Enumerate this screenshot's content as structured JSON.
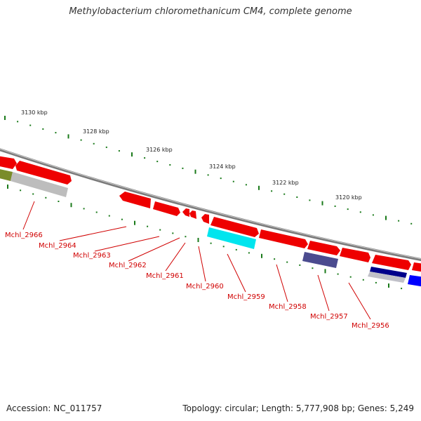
{
  "title": "Methylobacterium chloromethanicum CM4, complete genome",
  "footer": {
    "accession": "Accession: NC_011757",
    "topology": "Topology: circular; Length: 5,777,908 bp; Genes: 5,249"
  },
  "scale_labels": [
    "3130 kbp",
    "3128 kbp",
    "3126 kbp",
    "3124 kbp",
    "3122 kbp",
    "3120 kbp"
  ],
  "gene_labels": [
    "Mchl_2966",
    "Mchl_2964",
    "Mchl_2963",
    "Mchl_2962",
    "Mchl_2961",
    "Mchl_2960",
    "Mchl_2959",
    "Mchl_2958",
    "Mchl_2957",
    "Mchl_2956"
  ],
  "colors": {
    "gene_red": "#ee0000",
    "backbone": "#808080",
    "tick_green": "#1a7a1a",
    "label_red": "#d00000",
    "cyan": "#00e5ee",
    "slate": "#4b4b8f",
    "navy": "#00008b",
    "blue": "#0000ff",
    "olive": "#7a8c2a",
    "grey": "#b8b8b8"
  }
}
